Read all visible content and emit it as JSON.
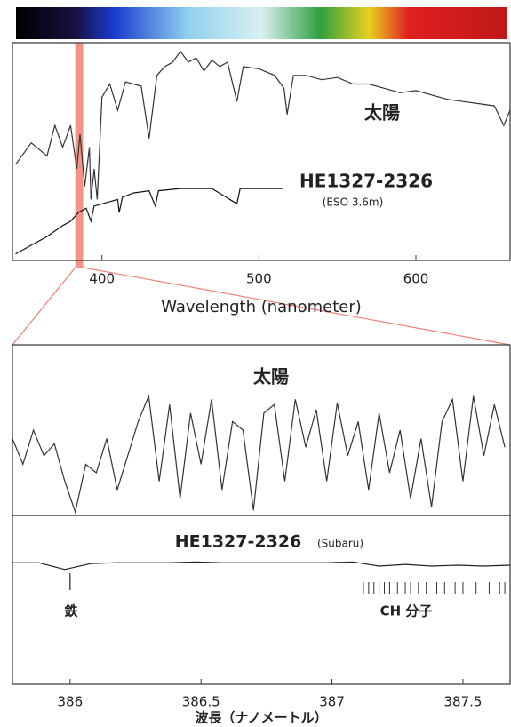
{
  "chart_data": [
    {
      "type": "line",
      "xlabel": "Wavelength (nanometer)",
      "xlim": [
        343,
        660
      ],
      "xticks": [
        400,
        500,
        600
      ],
      "ylim": [
        0,
        1
      ],
      "highlight": [
        383,
        388
      ],
      "annotations": [
        "太陽",
        "HE1327-2326",
        "(ESO 3.6m)"
      ],
      "series": [
        {
          "color": "#333333",
          "x": [
            345,
            355,
            365,
            370,
            375,
            380,
            384,
            386,
            389,
            392,
            393,
            395,
            397,
            400,
            405,
            410,
            415,
            420,
            425,
            430,
            435,
            440,
            445,
            450,
            455,
            460,
            465,
            470,
            475,
            480,
            486,
            490,
            500,
            510,
            516,
            518,
            522,
            530,
            540,
            550,
            560,
            570,
            580,
            590,
            600,
            610,
            620,
            630,
            640,
            650,
            656,
            660
          ],
          "values": [
            0.44,
            0.54,
            0.48,
            0.62,
            0.52,
            0.62,
            0.42,
            0.58,
            0.34,
            0.52,
            0.28,
            0.42,
            0.28,
            0.75,
            0.81,
            0.69,
            0.82,
            0.81,
            0.8,
            0.56,
            0.85,
            0.89,
            0.91,
            0.96,
            0.91,
            0.93,
            0.87,
            0.92,
            0.89,
            0.91,
            0.73,
            0.89,
            0.88,
            0.85,
            0.79,
            0.67,
            0.85,
            0.85,
            0.83,
            0.84,
            0.81,
            0.81,
            0.79,
            0.77,
            0.78,
            0.76,
            0.74,
            0.73,
            0.72,
            0.71,
            0.62,
            0.69
          ]
        },
        {
          "color": "#111111",
          "x": [
            345,
            355,
            365,
            375,
            380,
            385,
            390,
            393,
            395,
            400,
            410,
            411,
            413,
            420,
            430,
            434,
            436,
            450,
            470,
            486,
            488,
            500,
            515
          ],
          "values": [
            0.03,
            0.07,
            0.11,
            0.16,
            0.18,
            0.22,
            0.24,
            0.18,
            0.25,
            0.26,
            0.28,
            0.22,
            0.29,
            0.31,
            0.32,
            0.25,
            0.32,
            0.33,
            0.33,
            0.26,
            0.33,
            0.33,
            0.33
          ]
        }
      ]
    },
    {
      "type": "line",
      "xlim": [
        385.78,
        387.68
      ],
      "ylim": [
        0,
        1
      ],
      "annotations": [
        "太陽"
      ],
      "series": [
        {
          "color": "#333333",
          "x": [
            385.78,
            385.82,
            385.86,
            385.9,
            385.94,
            385.98,
            386.02,
            386.06,
            386.1,
            386.14,
            386.18,
            386.22,
            386.26,
            386.3,
            386.34,
            386.38,
            386.42,
            386.46,
            386.5,
            386.54,
            386.58,
            386.62,
            386.66,
            386.7,
            386.74,
            386.78,
            386.82,
            386.86,
            386.9,
            386.94,
            386.98,
            387.02,
            387.06,
            387.1,
            387.14,
            387.18,
            387.22,
            387.26,
            387.3,
            387.34,
            387.38,
            387.42,
            387.46,
            387.5,
            387.54,
            387.58,
            387.62,
            387.66
          ],
          "values": [
            0.45,
            0.3,
            0.5,
            0.35,
            0.42,
            0.2,
            0.02,
            0.3,
            0.25,
            0.45,
            0.15,
            0.35,
            0.55,
            0.7,
            0.2,
            0.65,
            0.1,
            0.6,
            0.3,
            0.68,
            0.15,
            0.55,
            0.5,
            0.03,
            0.6,
            0.65,
            0.2,
            0.68,
            0.4,
            0.62,
            0.2,
            0.66,
            0.35,
            0.55,
            0.15,
            0.6,
            0.25,
            0.5,
            0.1,
            0.45,
            0.05,
            0.55,
            0.68,
            0.2,
            0.7,
            0.35,
            0.65,
            0.4
          ]
        }
      ]
    },
    {
      "type": "line",
      "xlabel": "波長（ナノメートル）",
      "xlim": [
        385.78,
        387.68
      ],
      "xticks": [
        386,
        386.5,
        387,
        387.5
      ],
      "ylim": [
        0,
        1
      ],
      "annotations": [
        "HE1327-2326",
        "(Subaru)",
        "鉄",
        "CH 分子"
      ],
      "line_markers": [
        386.0
      ],
      "ch_lines": [
        387.12,
        387.14,
        387.16,
        387.18,
        387.2,
        387.22,
        387.25,
        387.28,
        387.3,
        387.33,
        387.36,
        387.4,
        387.43,
        387.47,
        387.5,
        387.55,
        387.6,
        387.64,
        387.66
      ],
      "series": [
        {
          "color": "#222222",
          "x": [
            385.78,
            385.88,
            385.98,
            386.08,
            386.18,
            386.28,
            386.38,
            386.48,
            386.58,
            386.68,
            386.78,
            386.88,
            386.98,
            387.08,
            387.18,
            387.28,
            387.38,
            387.48,
            387.58,
            387.68
          ],
          "values": [
            0.72,
            0.72,
            0.68,
            0.715,
            0.72,
            0.72,
            0.72,
            0.725,
            0.72,
            0.72,
            0.72,
            0.72,
            0.72,
            0.725,
            0.7,
            0.71,
            0.7,
            0.705,
            0.7,
            0.705
          ]
        }
      ]
    }
  ]
}
